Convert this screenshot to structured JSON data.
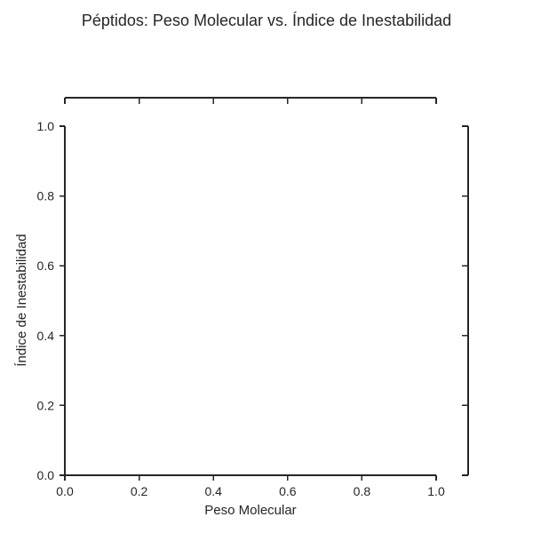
{
  "chart_data": {
    "type": "scatter",
    "title": "Péptidos: Peso Molecular vs. Índice de Inestabilidad",
    "xlabel": "Peso Molecular",
    "ylabel": "Índice de Inestabilidad",
    "xlim": [
      0.0,
      1.0
    ],
    "ylim": [
      0.0,
      1.0
    ],
    "x_ticks": [
      "0.0",
      "0.2",
      "0.4",
      "0.6",
      "0.8",
      "1.0"
    ],
    "y_ticks": [
      "0.0",
      "0.2",
      "0.4",
      "0.6",
      "0.8",
      "1.0"
    ],
    "series": [],
    "grid": false,
    "legend": "none",
    "marginal_x_ticks": 6,
    "marginal_y_ticks": 6,
    "colors": {
      "ink": "#262626",
      "background": "#ffffff"
    }
  }
}
